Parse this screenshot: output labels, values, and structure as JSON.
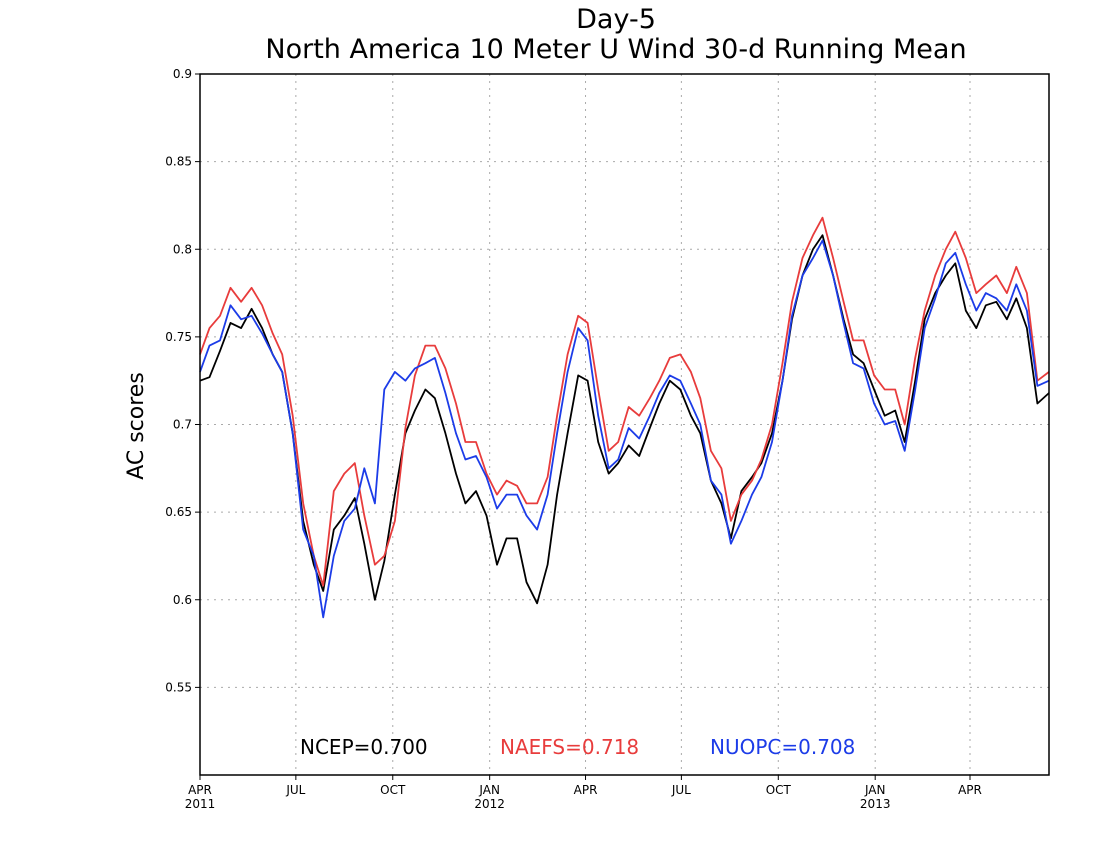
{
  "chart_data": {
    "type": "line",
    "title": "Day-5",
    "subtitle": "North America 10 Meter U Wind 30-d Running Mean",
    "xlabel": "",
    "ylabel": "AC scores",
    "x_start": "2011-04-01",
    "x_end": "2013-06-15",
    "ylim": [
      0.5,
      0.9
    ],
    "y_ticks": [
      "0.55",
      "0.6",
      "0.65",
      "0.7",
      "0.75",
      "0.8",
      "0.85",
      "0.9"
    ],
    "x_ticks": [
      {
        "date": "2011-04-01",
        "label": "APR",
        "year": "2011"
      },
      {
        "date": "2011-07-01",
        "label": "JUL",
        "year": ""
      },
      {
        "date": "2011-10-01",
        "label": "OCT",
        "year": ""
      },
      {
        "date": "2012-01-01",
        "label": "JAN",
        "year": "2012"
      },
      {
        "date": "2012-04-01",
        "label": "APR",
        "year": ""
      },
      {
        "date": "2012-07-01",
        "label": "JUL",
        "year": ""
      },
      {
        "date": "2012-10-01",
        "label": "OCT",
        "year": ""
      },
      {
        "date": "2013-01-01",
        "label": "JAN",
        "year": "2013"
      },
      {
        "date": "2013-04-01",
        "label": "APR",
        "year": ""
      }
    ],
    "grid": true,
    "legend_position": "bottom",
    "series": [
      {
        "color": "#000000",
        "points": [
          [
            "2011-04-01",
            0.725
          ],
          [
            "2011-04-10",
            0.727
          ],
          [
            "2011-04-20",
            0.742
          ],
          [
            "2011-04-30",
            0.758
          ],
          [
            "2011-05-10",
            0.755
          ],
          [
            "2011-05-20",
            0.766
          ],
          [
            "2011-05-30",
            0.755
          ],
          [
            "2011-06-09",
            0.74
          ],
          [
            "2011-06-18",
            0.73
          ],
          [
            "2011-06-28",
            0.695
          ],
          [
            "2011-07-08",
            0.645
          ],
          [
            "2011-07-18",
            0.62
          ],
          [
            "2011-07-27",
            0.605
          ],
          [
            "2011-08-06",
            0.64
          ],
          [
            "2011-08-16",
            0.648
          ],
          [
            "2011-08-26",
            0.658
          ],
          [
            "2011-09-04",
            0.632
          ],
          [
            "2011-09-14",
            0.6
          ],
          [
            "2011-09-23",
            0.622
          ],
          [
            "2011-10-03",
            0.66
          ],
          [
            "2011-10-13",
            0.695
          ],
          [
            "2011-10-22",
            0.708
          ],
          [
            "2011-11-01",
            0.72
          ],
          [
            "2011-11-10",
            0.715
          ],
          [
            "2011-11-20",
            0.695
          ],
          [
            "2011-11-30",
            0.672
          ],
          [
            "2011-12-09",
            0.655
          ],
          [
            "2011-12-19",
            0.662
          ],
          [
            "2011-12-29",
            0.648
          ],
          [
            "2012-01-08",
            0.62
          ],
          [
            "2012-01-17",
            0.635
          ],
          [
            "2012-01-27",
            0.635
          ],
          [
            "2012-02-05",
            0.61
          ],
          [
            "2012-02-15",
            0.598
          ],
          [
            "2012-02-25",
            0.62
          ],
          [
            "2012-03-05",
            0.66
          ],
          [
            "2012-03-15",
            0.695
          ],
          [
            "2012-03-25",
            0.728
          ],
          [
            "2012-04-03",
            0.725
          ],
          [
            "2012-04-13",
            0.69
          ],
          [
            "2012-04-23",
            0.672
          ],
          [
            "2012-05-02",
            0.678
          ],
          [
            "2012-05-12",
            0.688
          ],
          [
            "2012-05-22",
            0.682
          ],
          [
            "2012-06-01",
            0.698
          ],
          [
            "2012-06-10",
            0.712
          ],
          [
            "2012-06-20",
            0.725
          ],
          [
            "2012-06-30",
            0.72
          ],
          [
            "2012-07-10",
            0.705
          ],
          [
            "2012-07-19",
            0.695
          ],
          [
            "2012-07-29",
            0.668
          ],
          [
            "2012-08-08",
            0.655
          ],
          [
            "2012-08-17",
            0.635
          ],
          [
            "2012-08-27",
            0.662
          ],
          [
            "2012-09-06",
            0.67
          ],
          [
            "2012-09-15",
            0.678
          ],
          [
            "2012-09-25",
            0.695
          ],
          [
            "2012-10-05",
            0.725
          ],
          [
            "2012-10-14",
            0.76
          ],
          [
            "2012-10-24",
            0.785
          ],
          [
            "2012-11-03",
            0.8
          ],
          [
            "2012-11-12",
            0.808
          ],
          [
            "2012-11-22",
            0.785
          ],
          [
            "2012-12-02",
            0.76
          ],
          [
            "2012-12-11",
            0.74
          ],
          [
            "2012-12-21",
            0.735
          ],
          [
            "2012-12-31",
            0.72
          ],
          [
            "2013-01-10",
            0.705
          ],
          [
            "2013-01-20",
            0.708
          ],
          [
            "2013-01-29",
            0.69
          ],
          [
            "2013-02-08",
            0.725
          ],
          [
            "2013-02-17",
            0.76
          ],
          [
            "2013-02-27",
            0.775
          ],
          [
            "2013-03-09",
            0.785
          ],
          [
            "2013-03-18",
            0.792
          ],
          [
            "2013-03-28",
            0.765
          ],
          [
            "2013-04-07",
            0.755
          ],
          [
            "2013-04-16",
            0.768
          ],
          [
            "2013-04-26",
            0.77
          ],
          [
            "2013-05-06",
            0.76
          ],
          [
            "2013-05-15",
            0.772
          ],
          [
            "2013-05-25",
            0.755
          ],
          [
            "2013-06-04",
            0.712
          ],
          [
            "2013-06-15",
            0.718
          ]
        ]
      },
      {
        "color": "#e83c3c",
        "points": [
          [
            "2011-04-01",
            0.74
          ],
          [
            "2011-04-10",
            0.755
          ],
          [
            "2011-04-20",
            0.762
          ],
          [
            "2011-04-30",
            0.778
          ],
          [
            "2011-05-10",
            0.77
          ],
          [
            "2011-05-20",
            0.778
          ],
          [
            "2011-05-30",
            0.768
          ],
          [
            "2011-06-09",
            0.752
          ],
          [
            "2011-06-18",
            0.74
          ],
          [
            "2011-06-28",
            0.705
          ],
          [
            "2011-07-08",
            0.655
          ],
          [
            "2011-07-18",
            0.625
          ],
          [
            "2011-07-27",
            0.608
          ],
          [
            "2011-08-06",
            0.662
          ],
          [
            "2011-08-16",
            0.672
          ],
          [
            "2011-08-26",
            0.678
          ],
          [
            "2011-09-04",
            0.648
          ],
          [
            "2011-09-14",
            0.62
          ],
          [
            "2011-09-23",
            0.625
          ],
          [
            "2011-10-03",
            0.645
          ],
          [
            "2011-10-13",
            0.698
          ],
          [
            "2011-10-22",
            0.728
          ],
          [
            "2011-11-01",
            0.745
          ],
          [
            "2011-11-10",
            0.745
          ],
          [
            "2011-11-20",
            0.732
          ],
          [
            "2011-11-30",
            0.712
          ],
          [
            "2011-12-09",
            0.69
          ],
          [
            "2011-12-19",
            0.69
          ],
          [
            "2011-12-29",
            0.672
          ],
          [
            "2012-01-08",
            0.66
          ],
          [
            "2012-01-17",
            0.668
          ],
          [
            "2012-01-27",
            0.665
          ],
          [
            "2012-02-05",
            0.655
          ],
          [
            "2012-02-15",
            0.655
          ],
          [
            "2012-02-25",
            0.67
          ],
          [
            "2012-03-05",
            0.705
          ],
          [
            "2012-03-15",
            0.74
          ],
          [
            "2012-03-25",
            0.762
          ],
          [
            "2012-04-03",
            0.758
          ],
          [
            "2012-04-13",
            0.72
          ],
          [
            "2012-04-23",
            0.685
          ],
          [
            "2012-05-02",
            0.69
          ],
          [
            "2012-05-12",
            0.71
          ],
          [
            "2012-05-22",
            0.705
          ],
          [
            "2012-06-01",
            0.715
          ],
          [
            "2012-06-10",
            0.725
          ],
          [
            "2012-06-20",
            0.738
          ],
          [
            "2012-06-30",
            0.74
          ],
          [
            "2012-07-10",
            0.73
          ],
          [
            "2012-07-19",
            0.715
          ],
          [
            "2012-07-29",
            0.685
          ],
          [
            "2012-08-08",
            0.675
          ],
          [
            "2012-08-17",
            0.645
          ],
          [
            "2012-08-27",
            0.66
          ],
          [
            "2012-09-06",
            0.668
          ],
          [
            "2012-09-15",
            0.68
          ],
          [
            "2012-09-25",
            0.7
          ],
          [
            "2012-10-05",
            0.735
          ],
          [
            "2012-10-14",
            0.77
          ],
          [
            "2012-10-24",
            0.795
          ],
          [
            "2012-11-03",
            0.808
          ],
          [
            "2012-11-12",
            0.818
          ],
          [
            "2012-11-22",
            0.795
          ],
          [
            "2012-12-02",
            0.77
          ],
          [
            "2012-12-11",
            0.748
          ],
          [
            "2012-12-21",
            0.748
          ],
          [
            "2012-12-31",
            0.728
          ],
          [
            "2013-01-10",
            0.72
          ],
          [
            "2013-01-20",
            0.72
          ],
          [
            "2013-01-29",
            0.7
          ],
          [
            "2013-02-08",
            0.738
          ],
          [
            "2013-02-17",
            0.765
          ],
          [
            "2013-02-27",
            0.785
          ],
          [
            "2013-03-09",
            0.8
          ],
          [
            "2013-03-18",
            0.81
          ],
          [
            "2013-03-28",
            0.795
          ],
          [
            "2013-04-07",
            0.775
          ],
          [
            "2013-04-16",
            0.78
          ],
          [
            "2013-04-26",
            0.785
          ],
          [
            "2013-05-06",
            0.775
          ],
          [
            "2013-05-15",
            0.79
          ],
          [
            "2013-05-25",
            0.775
          ],
          [
            "2013-06-04",
            0.725
          ],
          [
            "2013-06-15",
            0.73
          ]
        ]
      },
      {
        "color": "#1c3ce8",
        "points": [
          [
            "2011-04-01",
            0.73
          ],
          [
            "2011-04-10",
            0.745
          ],
          [
            "2011-04-20",
            0.748
          ],
          [
            "2011-04-30",
            0.768
          ],
          [
            "2011-05-10",
            0.76
          ],
          [
            "2011-05-20",
            0.762
          ],
          [
            "2011-05-30",
            0.752
          ],
          [
            "2011-06-09",
            0.74
          ],
          [
            "2011-06-18",
            0.73
          ],
          [
            "2011-06-28",
            0.695
          ],
          [
            "2011-07-08",
            0.64
          ],
          [
            "2011-07-18",
            0.625
          ],
          [
            "2011-07-27",
            0.59
          ],
          [
            "2011-08-06",
            0.625
          ],
          [
            "2011-08-16",
            0.645
          ],
          [
            "2011-08-26",
            0.652
          ],
          [
            "2011-09-04",
            0.675
          ],
          [
            "2011-09-14",
            0.655
          ],
          [
            "2011-09-23",
            0.72
          ],
          [
            "2011-10-03",
            0.73
          ],
          [
            "2011-10-13",
            0.725
          ],
          [
            "2011-10-22",
            0.732
          ],
          [
            "2011-11-01",
            0.735
          ],
          [
            "2011-11-10",
            0.738
          ],
          [
            "2011-11-20",
            0.718
          ],
          [
            "2011-11-30",
            0.695
          ],
          [
            "2011-12-09",
            0.68
          ],
          [
            "2011-12-19",
            0.682
          ],
          [
            "2011-12-29",
            0.67
          ],
          [
            "2012-01-08",
            0.652
          ],
          [
            "2012-01-17",
            0.66
          ],
          [
            "2012-01-27",
            0.66
          ],
          [
            "2012-02-05",
            0.648
          ],
          [
            "2012-02-15",
            0.64
          ],
          [
            "2012-02-25",
            0.66
          ],
          [
            "2012-03-05",
            0.695
          ],
          [
            "2012-03-15",
            0.73
          ],
          [
            "2012-03-25",
            0.755
          ],
          [
            "2012-04-03",
            0.748
          ],
          [
            "2012-04-13",
            0.705
          ],
          [
            "2012-04-23",
            0.675
          ],
          [
            "2012-05-02",
            0.68
          ],
          [
            "2012-05-12",
            0.698
          ],
          [
            "2012-05-22",
            0.692
          ],
          [
            "2012-06-01",
            0.705
          ],
          [
            "2012-06-10",
            0.718
          ],
          [
            "2012-06-20",
            0.728
          ],
          [
            "2012-06-30",
            0.725
          ],
          [
            "2012-07-10",
            0.712
          ],
          [
            "2012-07-19",
            0.7
          ],
          [
            "2012-07-29",
            0.668
          ],
          [
            "2012-08-08",
            0.66
          ],
          [
            "2012-08-17",
            0.632
          ],
          [
            "2012-08-27",
            0.645
          ],
          [
            "2012-09-06",
            0.66
          ],
          [
            "2012-09-15",
            0.67
          ],
          [
            "2012-09-25",
            0.69
          ],
          [
            "2012-10-05",
            0.725
          ],
          [
            "2012-10-14",
            0.762
          ],
          [
            "2012-10-24",
            0.785
          ],
          [
            "2012-11-03",
            0.795
          ],
          [
            "2012-11-12",
            0.805
          ],
          [
            "2012-11-22",
            0.785
          ],
          [
            "2012-12-02",
            0.758
          ],
          [
            "2012-12-11",
            0.735
          ],
          [
            "2012-12-21",
            0.732
          ],
          [
            "2012-12-31",
            0.712
          ],
          [
            "2013-01-10",
            0.7
          ],
          [
            "2013-01-20",
            0.702
          ],
          [
            "2013-01-29",
            0.685
          ],
          [
            "2013-02-08",
            0.72
          ],
          [
            "2013-02-17",
            0.755
          ],
          [
            "2013-02-27",
            0.772
          ],
          [
            "2013-03-09",
            0.792
          ],
          [
            "2013-03-18",
            0.798
          ],
          [
            "2013-03-28",
            0.78
          ],
          [
            "2013-04-07",
            0.765
          ],
          [
            "2013-04-16",
            0.775
          ],
          [
            "2013-04-26",
            0.772
          ],
          [
            "2013-05-06",
            0.765
          ],
          [
            "2013-05-15",
            0.78
          ],
          [
            "2013-05-25",
            0.765
          ],
          [
            "2013-06-04",
            0.722
          ],
          [
            "2013-06-15",
            0.725
          ]
        ]
      }
    ],
    "annotations": [
      {
        "text": "NCEP=0.700",
        "color": "#000000"
      },
      {
        "text": "NAEFS=0.718",
        "color": "#e83c3c"
      },
      {
        "text": "NUOPC=0.708",
        "color": "#1c3ce8"
      }
    ]
  }
}
